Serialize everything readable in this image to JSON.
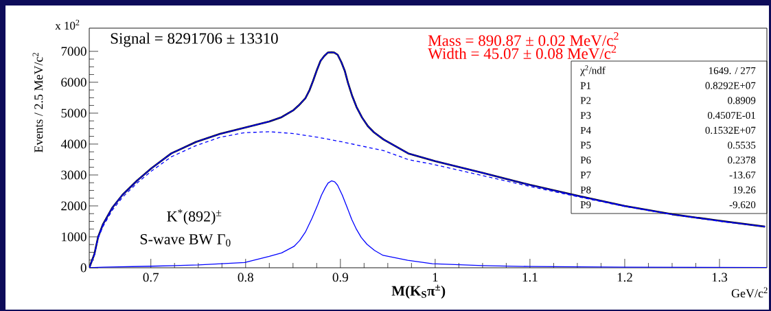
{
  "chart_data": {
    "type": "line",
    "xlabel": "M(K$_{S}$π$^{±}$)",
    "ylabel": "Events / 2.5 MeV/c$^{2}$",
    "xlim": [
      0.635,
      1.35
    ],
    "ylim": [
      0,
      7750
    ],
    "xticks": [
      0.7,
      0.8,
      0.9,
      1,
      1.1,
      1.2,
      1.3
    ],
    "yticks": [
      0,
      1000,
      2000,
      3000,
      4000,
      5000,
      6000,
      7000
    ],
    "series": [
      {
        "color": "#000000",
        "x": [
          0.635,
          0.6404,
          0.6444,
          0.6494,
          0.6595,
          0.6701,
          0.6855,
          0.7007,
          0.7216,
          0.7476,
          0.7729,
          0.7989,
          0.8249,
          0.8379,
          0.8506,
          0.856,
          0.8632,
          0.8675,
          0.8711,
          0.875,
          0.879,
          0.883,
          0.8867,
          0.8906,
          0.8935,
          0.8971,
          0.901,
          0.9047,
          0.908,
          0.9123,
          0.917,
          0.9228,
          0.929,
          0.9354,
          0.9455,
          0.9715,
          1.0,
          1.05,
          1.1,
          1.15,
          1.2,
          1.25,
          1.3,
          1.348
        ],
        "values": [
          0,
          440,
          1000,
          1400,
          1950,
          2360,
          2820,
          3220,
          3700,
          4070,
          4330,
          4530,
          4730,
          4870,
          5100,
          5250,
          5490,
          5750,
          6040,
          6380,
          6690,
          6850,
          6960,
          6970,
          6960,
          6890,
          6650,
          6360,
          5980,
          5570,
          5200,
          4860,
          4580,
          4380,
          4150,
          3700,
          3450,
          3070,
          2680,
          2330,
          2000,
          1730,
          1520,
          1330
        ]
      },
      {
        "color": "#0000ff",
        "x": [
          0.635,
          0.6404,
          0.6444,
          0.6494,
          0.6595,
          0.6701,
          0.6855,
          0.7007,
          0.7216,
          0.7476,
          0.7729,
          0.7989,
          0.8249,
          0.8379,
          0.8506,
          0.856,
          0.8632,
          0.8675,
          0.8711,
          0.875,
          0.879,
          0.883,
          0.8867,
          0.8906,
          0.8935,
          0.8971,
          0.901,
          0.9047,
          0.908,
          0.9123,
          0.917,
          0.9228,
          0.929,
          0.9354,
          0.9455,
          0.9715,
          1.0,
          1.05,
          1.1,
          1.15,
          1.2,
          1.25,
          1.3,
          1.348
        ],
        "values": [
          0,
          440,
          1000,
          1400,
          1950,
          2360,
          2820,
          3220,
          3700,
          4070,
          4330,
          4530,
          4730,
          4870,
          5100,
          5250,
          5490,
          5750,
          6040,
          6380,
          6690,
          6850,
          6960,
          6970,
          6960,
          6890,
          6650,
          6360,
          5980,
          5570,
          5200,
          4860,
          4580,
          4380,
          4150,
          3700,
          3450,
          3070,
          2680,
          2330,
          2000,
          1730,
          1520,
          1330
        ]
      },
      {
        "color": "#0000ff",
        "line_style": "dashed",
        "x": [
          0.635,
          0.6404,
          0.6444,
          0.6494,
          0.6595,
          0.6701,
          0.6855,
          0.7007,
          0.7216,
          0.7476,
          0.7729,
          0.7989,
          0.8249,
          0.8506,
          0.8761,
          0.9021,
          0.928,
          0.9455,
          0.9715,
          1.0,
          1.05,
          1.1,
          1.15,
          1.2,
          1.25,
          1.3,
          1.348
        ],
        "values": [
          0,
          400,
          950,
          1330,
          1870,
          2280,
          2740,
          3130,
          3590,
          3950,
          4220,
          4370,
          4400,
          4340,
          4220,
          4070,
          3900,
          3790,
          3500,
          3330,
          2980,
          2630,
          2300,
          1980,
          1720,
          1500,
          1330
        ]
      },
      {
        "color": "#0000ff",
        "x": [
          0.635,
          0.65,
          0.7,
          0.75,
          0.799,
          0.825,
          0.838,
          0.851,
          0.857,
          0.863,
          0.87,
          0.876,
          0.88,
          0.884,
          0.887,
          0.8906,
          0.894,
          0.897,
          0.902,
          0.907,
          0.912,
          0.917,
          0.922,
          0.928,
          0.936,
          0.945,
          0.971,
          0.997,
          1.05,
          1.1,
          1.2,
          1.35
        ],
        "values": [
          0,
          20,
          50,
          90,
          170,
          370,
          480,
          690,
          880,
          1150,
          1600,
          2030,
          2350,
          2590,
          2740,
          2810,
          2780,
          2670,
          2350,
          1960,
          1560,
          1240,
          980,
          760,
          560,
          400,
          240,
          130,
          70,
          40,
          20,
          10
        ]
      }
    ],
    "annotations": [
      "x 10$^{2}$",
      "Signal = 8291706 ± 13310",
      "Mass = 890.87 ± 0.02 MeV/c$^{2}$",
      "Width = 45.07 ± 0.08 MeV/c$^{2}$",
      "K$^{*}$(892)$^{±}$",
      "S-wave BW  Γ$_{0}$",
      "GeV/c$^{2}$",
      "χ$^{2}$/ndf",
      "1649.  /  277",
      "P1",
      "0.8292E+07",
      "P2",
      "0.8909",
      "P3",
      "0.4507E-01",
      "P4",
      "0.1532E+07",
      "P5",
      "0.5535",
      "P6",
      "0.2378",
      "P7",
      "-13.67",
      "P8",
      "19.26",
      "P9",
      "-9.620"
    ]
  }
}
